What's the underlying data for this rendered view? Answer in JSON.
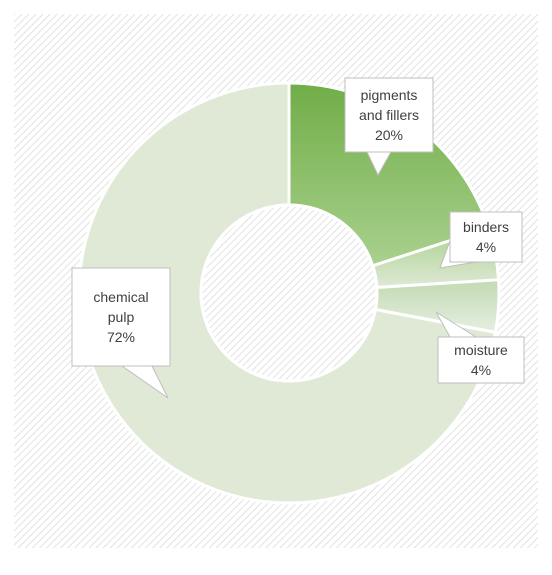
{
  "chart_data": {
    "type": "pie",
    "donut": true,
    "title": "",
    "legend": "none",
    "slices": [
      {
        "label_lines": [
          "pigments",
          "and fillers"
        ],
        "value": 20,
        "value_label": "20%",
        "colors": [
          "#70ad47",
          "#a9d18e"
        ]
      },
      {
        "label_lines": [
          "binders"
        ],
        "value": 4,
        "value_label": "4%",
        "colors": [
          "#a9d18e",
          "#dfe9d6"
        ]
      },
      {
        "label_lines": [
          "moisture"
        ],
        "value": 4,
        "value_label": "4%",
        "colors": [
          "#c2dab3",
          "#e6eee0"
        ]
      },
      {
        "label_lines": [
          "chemical",
          "pulp"
        ],
        "value": 72,
        "value_label": "72%",
        "colors": [
          "#dfe9d6",
          "#dfe9d6"
        ]
      }
    ]
  }
}
